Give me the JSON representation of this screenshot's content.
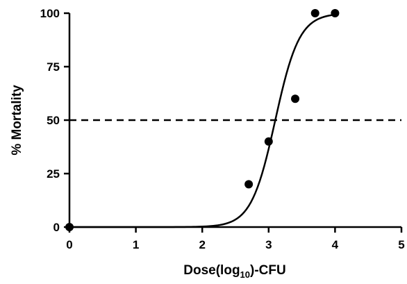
{
  "chart_data": {
    "type": "scatter",
    "xlabel": "Dose(log",
    "xlabel_sub": "10",
    "xlabel_suffix": ")-CFU",
    "ylabel": "% Mortality",
    "xlim": [
      0,
      5
    ],
    "ylim": [
      0,
      100
    ],
    "x_ticks": [
      "0",
      "1",
      "2",
      "3",
      "4",
      "5"
    ],
    "y_ticks": [
      "0",
      "25",
      "50",
      "75",
      "100"
    ],
    "grid": false,
    "points": [
      {
        "x": 0,
        "y": 0
      },
      {
        "x": 2.7,
        "y": 20
      },
      {
        "x": 3.0,
        "y": 40
      },
      {
        "x": 3.4,
        "y": 60
      },
      {
        "x": 3.7,
        "y": 100
      },
      {
        "x": 4.0,
        "y": 100
      }
    ],
    "fit_curve": {
      "type": "sigmoid",
      "description": "dose-response fit",
      "ld50": 3.1,
      "slope": 2.4,
      "x_range": [
        0,
        4
      ],
      "sample_points": [
        {
          "x": 0,
          "y": 0
        },
        {
          "x": 1,
          "y": 1
        },
        {
          "x": 2,
          "y": 7
        },
        {
          "x": 3,
          "y": 36
        },
        {
          "x": 3.1,
          "y": 50
        },
        {
          "x": 3.5,
          "y": 68
        },
        {
          "x": 4,
          "y": 89
        }
      ]
    },
    "reference_line": {
      "y": 50,
      "style": "dashed"
    },
    "colors": {
      "marks": "#000000",
      "background": "#ffffff"
    }
  }
}
